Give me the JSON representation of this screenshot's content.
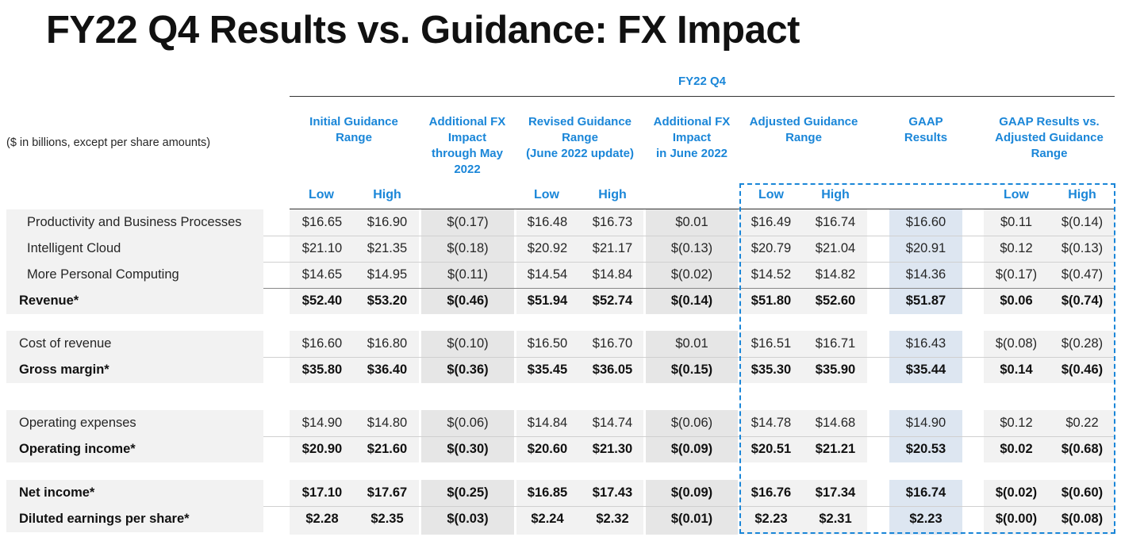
{
  "title": "FY22 Q4 Results vs. Guidance: FX Impact",
  "period": "FY22 Q4",
  "units_note": "($ in billions, except per share amounts)",
  "columns": {
    "initial": [
      "Initial Guidance",
      "Range"
    ],
    "add_fx_may": [
      "Additional FX",
      "Impact",
      "through May",
      "2022"
    ],
    "revised": [
      "Revised Guidance",
      "Range",
      "(June 2022 update)"
    ],
    "add_fx_june": [
      "Additional FX",
      "Impact",
      "in June 2022"
    ],
    "adjusted": [
      "Adjusted Guidance",
      "Range"
    ],
    "gaap": [
      "GAAP",
      "Results"
    ],
    "gaap_vs": [
      "GAAP Results vs.",
      "Adjusted Guidance",
      "Range"
    ]
  },
  "sub_low": "Low",
  "sub_high": "High",
  "rows": [
    {
      "label": "Productivity and Business Processes",
      "cells": [
        "$16.65",
        "$16.90",
        "$(0.17)",
        "$16.48",
        "$16.73",
        "$0.01",
        "$16.49",
        "$16.74",
        "$16.60",
        "$0.11",
        "$(0.14)"
      ]
    },
    {
      "label": "Intelligent Cloud",
      "cells": [
        "$21.10",
        "$21.35",
        "$(0.18)",
        "$20.92",
        "$21.17",
        "$(0.13)",
        "$20.79",
        "$21.04",
        "$20.91",
        "$0.12",
        "$(0.13)"
      ]
    },
    {
      "label": "More Personal Computing",
      "cells": [
        "$14.65",
        "$14.95",
        "$(0.11)",
        "$14.54",
        "$14.84",
        "$(0.02)",
        "$14.52",
        "$14.82",
        "$14.36",
        "$(0.17)",
        "$(0.47)"
      ]
    },
    {
      "label": "Revenue*",
      "cells": [
        "$52.40",
        "$53.20",
        "$(0.46)",
        "$51.94",
        "$52.74",
        "$(0.14)",
        "$51.80",
        "$52.60",
        "$51.87",
        "$0.06",
        "$(0.74)"
      ]
    },
    {
      "label": "Cost of revenue",
      "cells": [
        "$16.60",
        "$16.80",
        "$(0.10)",
        "$16.50",
        "$16.70",
        "$0.01",
        "$16.51",
        "$16.71",
        "$16.43",
        "$(0.08)",
        "$(0.28)"
      ]
    },
    {
      "label": "Gross margin*",
      "cells": [
        "$35.80",
        "$36.40",
        "$(0.36)",
        "$35.45",
        "$36.05",
        "$(0.15)",
        "$35.30",
        "$35.90",
        "$35.44",
        "$0.14",
        "$(0.46)"
      ]
    },
    {
      "label": "Operating expenses",
      "cells": [
        "$14.90",
        "$14.80",
        "$(0.06)",
        "$14.84",
        "$14.74",
        "$(0.06)",
        "$14.78",
        "$14.68",
        "$14.90",
        "$0.12",
        "$0.22"
      ]
    },
    {
      "label": "Operating income*",
      "cells": [
        "$20.90",
        "$21.60",
        "$(0.30)",
        "$20.60",
        "$21.30",
        "$(0.09)",
        "$20.51",
        "$21.21",
        "$20.53",
        "$0.02",
        "$(0.68)"
      ]
    },
    {
      "label": "Net income*",
      "cells": [
        "$17.10",
        "$17.67",
        "$(0.25)",
        "$16.85",
        "$17.43",
        "$(0.09)",
        "$16.76",
        "$17.34",
        "$16.74",
        "$(0.02)",
        "$(0.60)"
      ]
    },
    {
      "label": "Diluted earnings per share*",
      "cells": [
        "$2.28",
        "$2.35",
        "$(0.03)",
        "$2.24",
        "$2.32",
        "$(0.01)",
        "$2.23",
        "$2.31",
        "$2.23",
        "$(0.00)",
        "$(0.08)"
      ]
    }
  ]
}
